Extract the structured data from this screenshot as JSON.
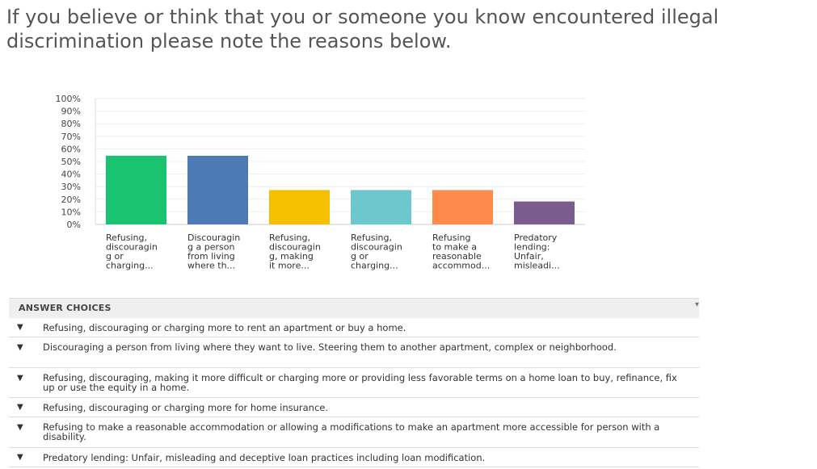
{
  "question": {
    "title": "If you believe or think that you or someone you know encountered illegal discrimination please note the reasons below."
  },
  "chart_data": {
    "type": "bar",
    "y_ticks": [
      "100%",
      "90%",
      "80%",
      "70%",
      "60%",
      "50%",
      "40%",
      "30%",
      "20%",
      "10%",
      "0%"
    ],
    "ylim": [
      0,
      100
    ],
    "grid": true,
    "categories": [
      [
        "Refusing,",
        "discouragin",
        "g or",
        "charging..."
      ],
      [
        "Discouragin",
        "g a person",
        "from living",
        "where th..."
      ],
      [
        "Refusing,",
        "discouragin",
        "g, making",
        "it more..."
      ],
      [
        "Refusing,",
        "discouragin",
        "g or",
        "charging..."
      ],
      [
        "Refusing",
        "to make a",
        "reasonable",
        "accommod..."
      ],
      [
        "Predatory",
        "lending:",
        "Unfair,",
        "misleadi..."
      ]
    ],
    "values": [
      54.5,
      54.5,
      27.3,
      27.3,
      27.3,
      18.2
    ],
    "colors": [
      "#1ac36f",
      "#4d79b5",
      "#f6c000",
      "#6cc8cc",
      "#ff8a4c",
      "#7b5c8f"
    ]
  },
  "answers": {
    "header": "ANSWER CHOICES",
    "items": [
      "Refusing, discouraging or charging more to rent an apartment or buy a home.",
      "Discouraging a person from living where they want to live. Steering them to another apartment, complex or neighborhood.",
      "Refusing, discouraging, making it more difficult or charging more or providing less favorable terms on a home loan to buy, refinance, fix up or use the equity in a home.",
      "Refusing, discouraging or charging more for home insurance.",
      "Refusing to make a reasonable accommodation or allowing a modifications to make an apartment more accessible for person with a disability.",
      "Predatory lending: Unfair, misleading and deceptive loan practices including loan modification."
    ]
  }
}
